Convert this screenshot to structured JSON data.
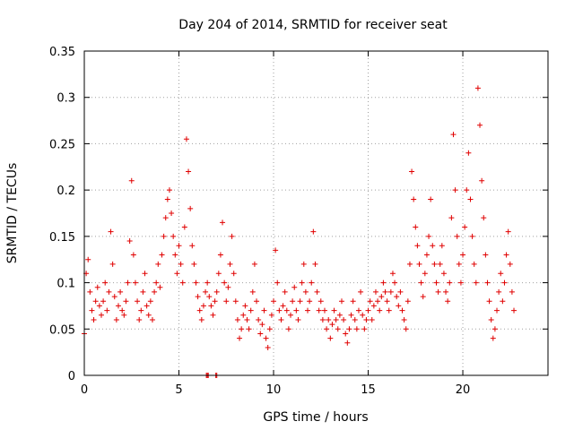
{
  "chart_data": {
    "type": "scatter",
    "title": "Day 204 of 2014, SRMTID for receiver seat",
    "xlabel": "GPS time / hours",
    "ylabel": "SRMTID / TECUs",
    "xlim": [
      0,
      24.5
    ],
    "ylim": [
      0,
      0.35
    ],
    "xticks": [
      0,
      5,
      10,
      15,
      20
    ],
    "xtick_labels": [
      "0",
      "5",
      "10",
      "15",
      "20"
    ],
    "yticks": [
      0,
      0.05,
      0.1,
      0.15,
      0.2,
      0.25,
      0.3,
      0.35
    ],
    "ytick_labels": [
      "0",
      "0.05",
      "0.1",
      "0.15",
      "0.2",
      "0.25",
      "0.3",
      "0.35"
    ],
    "grid": true,
    "marker": "+",
    "color": "#e00000",
    "series": [
      {
        "name": "SRMTID",
        "points": [
          [
            0.0,
            0.045
          ],
          [
            0.1,
            0.11
          ],
          [
            0.2,
            0.125
          ],
          [
            0.3,
            0.09
          ],
          [
            0.4,
            0.07
          ],
          [
            0.5,
            0.06
          ],
          [
            0.6,
            0.08
          ],
          [
            0.7,
            0.095
          ],
          [
            0.8,
            0.075
          ],
          [
            0.9,
            0.065
          ],
          [
            1.0,
            0.08
          ],
          [
            1.1,
            0.1
          ],
          [
            1.2,
            0.07
          ],
          [
            1.3,
            0.09
          ],
          [
            1.4,
            0.155
          ],
          [
            1.5,
            0.12
          ],
          [
            1.6,
            0.085
          ],
          [
            1.7,
            0.06
          ],
          [
            1.8,
            0.075
          ],
          [
            1.9,
            0.09
          ],
          [
            2.0,
            0.07
          ],
          [
            2.1,
            0.065
          ],
          [
            2.2,
            0.08
          ],
          [
            2.3,
            0.1
          ],
          [
            2.4,
            0.145
          ],
          [
            2.5,
            0.21
          ],
          [
            2.6,
            0.13
          ],
          [
            2.7,
            0.1
          ],
          [
            2.8,
            0.08
          ],
          [
            2.9,
            0.06
          ],
          [
            3.0,
            0.07
          ],
          [
            3.1,
            0.09
          ],
          [
            3.2,
            0.11
          ],
          [
            3.3,
            0.075
          ],
          [
            3.4,
            0.065
          ],
          [
            3.5,
            0.08
          ],
          [
            3.6,
            0.06
          ],
          [
            3.7,
            0.09
          ],
          [
            3.8,
            0.1
          ],
          [
            3.9,
            0.12
          ],
          [
            4.0,
            0.095
          ],
          [
            4.1,
            0.13
          ],
          [
            4.2,
            0.15
          ],
          [
            4.3,
            0.17
          ],
          [
            4.4,
            0.19
          ],
          [
            4.5,
            0.2
          ],
          [
            4.6,
            0.175
          ],
          [
            4.7,
            0.15
          ],
          [
            4.8,
            0.13
          ],
          [
            4.9,
            0.11
          ],
          [
            5.0,
            0.14
          ],
          [
            5.1,
            0.12
          ],
          [
            5.2,
            0.1
          ],
          [
            5.3,
            0.16
          ],
          [
            5.4,
            0.255
          ],
          [
            5.5,
            0.22
          ],
          [
            5.6,
            0.18
          ],
          [
            5.7,
            0.14
          ],
          [
            5.8,
            0.12
          ],
          [
            5.9,
            0.1
          ],
          [
            6.0,
            0.085
          ],
          [
            6.1,
            0.07
          ],
          [
            6.2,
            0.06
          ],
          [
            6.3,
            0.075
          ],
          [
            6.4,
            0.09
          ],
          [
            6.5,
            0.1
          ],
          [
            6.6,
            0.085
          ],
          [
            6.7,
            0.075
          ],
          [
            6.8,
            0.065
          ],
          [
            6.9,
            0.08
          ],
          [
            7.0,
            0.09
          ],
          [
            7.1,
            0.11
          ],
          [
            7.2,
            0.13
          ],
          [
            7.3,
            0.165
          ],
          [
            7.4,
            0.1
          ],
          [
            7.5,
            0.08
          ],
          [
            7.6,
            0.095
          ],
          [
            7.7,
            0.12
          ],
          [
            7.8,
            0.15
          ],
          [
            7.9,
            0.11
          ],
          [
            8.0,
            0.08
          ],
          [
            8.1,
            0.06
          ],
          [
            8.2,
            0.04
          ],
          [
            8.3,
            0.05
          ],
          [
            8.4,
            0.065
          ],
          [
            8.5,
            0.075
          ],
          [
            8.6,
            0.06
          ],
          [
            8.7,
            0.05
          ],
          [
            8.8,
            0.07
          ],
          [
            8.9,
            0.09
          ],
          [
            9.0,
            0.12
          ],
          [
            9.1,
            0.08
          ],
          [
            9.2,
            0.06
          ],
          [
            9.3,
            0.045
          ],
          [
            9.4,
            0.055
          ],
          [
            9.5,
            0.07
          ],
          [
            9.6,
            0.04
          ],
          [
            9.7,
            0.03
          ],
          [
            9.8,
            0.05
          ],
          [
            9.9,
            0.065
          ],
          [
            10.0,
            0.08
          ],
          [
            10.1,
            0.135
          ],
          [
            10.2,
            0.1
          ],
          [
            10.3,
            0.07
          ],
          [
            10.4,
            0.06
          ],
          [
            10.5,
            0.075
          ],
          [
            10.6,
            0.09
          ],
          [
            10.7,
            0.07
          ],
          [
            10.8,
            0.05
          ],
          [
            10.9,
            0.065
          ],
          [
            11.0,
            0.08
          ],
          [
            11.1,
            0.095
          ],
          [
            11.2,
            0.07
          ],
          [
            11.3,
            0.06
          ],
          [
            11.4,
            0.08
          ],
          [
            11.5,
            0.1
          ],
          [
            11.6,
            0.12
          ],
          [
            11.7,
            0.09
          ],
          [
            11.8,
            0.07
          ],
          [
            11.9,
            0.08
          ],
          [
            12.0,
            0.1
          ],
          [
            12.1,
            0.155
          ],
          [
            12.2,
            0.12
          ],
          [
            12.3,
            0.09
          ],
          [
            12.4,
            0.07
          ],
          [
            12.5,
            0.08
          ],
          [
            12.6,
            0.06
          ],
          [
            12.7,
            0.07
          ],
          [
            12.8,
            0.05
          ],
          [
            12.9,
            0.06
          ],
          [
            13.0,
            0.04
          ],
          [
            13.1,
            0.055
          ],
          [
            13.2,
            0.07
          ],
          [
            13.3,
            0.06
          ],
          [
            13.4,
            0.05
          ],
          [
            13.5,
            0.065
          ],
          [
            13.6,
            0.08
          ],
          [
            13.7,
            0.06
          ],
          [
            13.8,
            0.045
          ],
          [
            13.9,
            0.035
          ],
          [
            14.0,
            0.05
          ],
          [
            14.1,
            0.065
          ],
          [
            14.2,
            0.08
          ],
          [
            14.3,
            0.06
          ],
          [
            14.4,
            0.05
          ],
          [
            14.5,
            0.07
          ],
          [
            14.6,
            0.09
          ],
          [
            14.7,
            0.065
          ],
          [
            14.8,
            0.05
          ],
          [
            14.9,
            0.06
          ],
          [
            15.0,
            0.07
          ],
          [
            15.1,
            0.08
          ],
          [
            15.2,
            0.06
          ],
          [
            15.3,
            0.075
          ],
          [
            15.4,
            0.09
          ],
          [
            15.5,
            0.08
          ],
          [
            15.6,
            0.07
          ],
          [
            15.7,
            0.085
          ],
          [
            15.8,
            0.1
          ],
          [
            15.9,
            0.09
          ],
          [
            16.0,
            0.08
          ],
          [
            16.1,
            0.07
          ],
          [
            16.2,
            0.09
          ],
          [
            16.3,
            0.11
          ],
          [
            16.4,
            0.1
          ],
          [
            16.5,
            0.085
          ],
          [
            16.6,
            0.075
          ],
          [
            16.7,
            0.09
          ],
          [
            16.8,
            0.07
          ],
          [
            16.9,
            0.06
          ],
          [
            17.0,
            0.05
          ],
          [
            17.1,
            0.08
          ],
          [
            17.2,
            0.12
          ],
          [
            17.3,
            0.22
          ],
          [
            17.4,
            0.19
          ],
          [
            17.5,
            0.16
          ],
          [
            17.6,
            0.14
          ],
          [
            17.7,
            0.12
          ],
          [
            17.8,
            0.1
          ],
          [
            17.9,
            0.085
          ],
          [
            18.0,
            0.11
          ],
          [
            18.1,
            0.13
          ],
          [
            18.2,
            0.15
          ],
          [
            18.3,
            0.19
          ],
          [
            18.4,
            0.14
          ],
          [
            18.5,
            0.12
          ],
          [
            18.6,
            0.1
          ],
          [
            18.7,
            0.09
          ],
          [
            18.8,
            0.12
          ],
          [
            18.9,
            0.14
          ],
          [
            19.0,
            0.11
          ],
          [
            19.1,
            0.09
          ],
          [
            19.2,
            0.08
          ],
          [
            19.3,
            0.1
          ],
          [
            19.4,
            0.17
          ],
          [
            19.5,
            0.26
          ],
          [
            19.6,
            0.2
          ],
          [
            19.7,
            0.15
          ],
          [
            19.8,
            0.12
          ],
          [
            19.9,
            0.1
          ],
          [
            20.0,
            0.13
          ],
          [
            20.1,
            0.16
          ],
          [
            20.2,
            0.2
          ],
          [
            20.3,
            0.24
          ],
          [
            20.4,
            0.19
          ],
          [
            20.5,
            0.15
          ],
          [
            20.6,
            0.12
          ],
          [
            20.7,
            0.1
          ],
          [
            20.8,
            0.31
          ],
          [
            20.9,
            0.27
          ],
          [
            21.0,
            0.21
          ],
          [
            21.1,
            0.17
          ],
          [
            21.2,
            0.13
          ],
          [
            21.3,
            0.1
          ],
          [
            21.4,
            0.08
          ],
          [
            21.5,
            0.06
          ],
          [
            21.6,
            0.04
          ],
          [
            21.7,
            0.05
          ],
          [
            21.8,
            0.07
          ],
          [
            21.9,
            0.09
          ],
          [
            22.0,
            0.11
          ],
          [
            22.1,
            0.08
          ],
          [
            22.2,
            0.1
          ],
          [
            22.3,
            0.13
          ],
          [
            22.4,
            0.155
          ],
          [
            22.5,
            0.12
          ],
          [
            22.6,
            0.09
          ],
          [
            22.7,
            0.07
          ],
          [
            6.45,
            0.0
          ],
          [
            6.5,
            0.0
          ],
          [
            6.55,
            0.0
          ],
          [
            6.95,
            0.0
          ],
          [
            7.0,
            0.0
          ]
        ]
      }
    ]
  }
}
